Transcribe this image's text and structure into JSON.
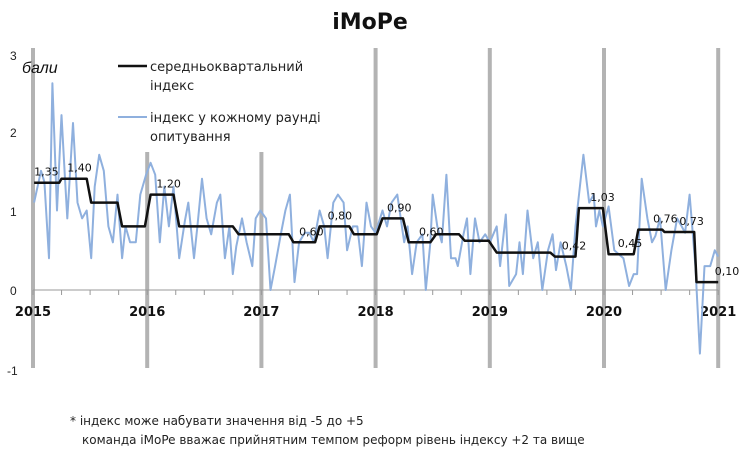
{
  "chart_data": {
    "type": "line",
    "title": "iMoPe",
    "ylabel": "бали",
    "ylim": [
      -1,
      3
    ],
    "yticks": [
      "3",
      "2",
      "1",
      "0",
      "-1"
    ],
    "xlim": [
      2015,
      2021
    ],
    "xticks": [
      "2015",
      "2016",
      "2017",
      "2018",
      "2019",
      "2020",
      "2021"
    ],
    "grid": "vertical bars at years",
    "legend_position": "top-left",
    "series": [
      {
        "name": "середньоквартальний індекс",
        "color": "#111111",
        "style": "step",
        "points": [
          [
            2015.01,
            1.35
          ],
          [
            2015.23,
            1.35
          ],
          [
            2015.25,
            1.4
          ],
          [
            2015.47,
            1.4
          ],
          [
            2015.51,
            1.1
          ],
          [
            2015.74,
            1.1
          ],
          [
            2015.78,
            0.8
          ],
          [
            2015.98,
            0.8
          ],
          [
            2016.03,
            1.2
          ],
          [
            2016.23,
            1.2
          ],
          [
            2016.28,
            0.8
          ],
          [
            2016.75,
            0.8
          ],
          [
            2016.8,
            0.7
          ],
          [
            2017.24,
            0.7
          ],
          [
            2017.28,
            0.6
          ],
          [
            2017.47,
            0.6
          ],
          [
            2017.51,
            0.8
          ],
          [
            2017.77,
            0.8
          ],
          [
            2017.81,
            0.7
          ],
          [
            2018.01,
            0.7
          ],
          [
            2018.06,
            0.9
          ],
          [
            2018.24,
            0.9
          ],
          [
            2018.29,
            0.6
          ],
          [
            2018.48,
            0.6
          ],
          [
            2018.53,
            0.7
          ],
          [
            2018.73,
            0.7
          ],
          [
            2018.78,
            0.62
          ],
          [
            2018.99,
            0.62
          ],
          [
            2019.06,
            0.47
          ],
          [
            2019.53,
            0.47
          ],
          [
            2019.57,
            0.42
          ],
          [
            2019.75,
            0.42
          ],
          [
            2019.78,
            1.03
          ],
          [
            2019.99,
            1.03
          ],
          [
            2020.04,
            0.45
          ],
          [
            2020.26,
            0.45
          ],
          [
            2020.3,
            0.76
          ],
          [
            2020.51,
            0.76
          ],
          [
            2020.53,
            0.73
          ],
          [
            2020.79,
            0.73
          ],
          [
            2020.81,
            0.1
          ],
          [
            2021.0,
            0.1
          ]
        ]
      },
      {
        "name": "індекс у кожному раунді опитування",
        "color": "#8fb0de",
        "style": "line",
        "points": [
          [
            2015.01,
            1.1
          ],
          [
            2015.07,
            1.5
          ],
          [
            2015.1,
            1.36
          ],
          [
            2015.14,
            0.4
          ],
          [
            2015.17,
            2.6
          ],
          [
            2015.21,
            1.0
          ],
          [
            2015.25,
            2.2
          ],
          [
            2015.28,
            1.4
          ],
          [
            2015.3,
            0.9
          ],
          [
            2015.35,
            2.1
          ],
          [
            2015.39,
            1.1
          ],
          [
            2015.43,
            0.9
          ],
          [
            2015.47,
            1.0
          ],
          [
            2015.51,
            0.4
          ],
          [
            2015.54,
            1.3
          ],
          [
            2015.58,
            1.7
          ],
          [
            2015.62,
            1.5
          ],
          [
            2015.66,
            0.8
          ],
          [
            2015.7,
            0.6
          ],
          [
            2015.74,
            1.2
          ],
          [
            2015.78,
            0.4
          ],
          [
            2015.81,
            0.8
          ],
          [
            2015.85,
            0.6
          ],
          [
            2015.9,
            0.6
          ],
          [
            2015.94,
            1.2
          ],
          [
            2015.99,
            1.45
          ],
          [
            2016.03,
            1.6
          ],
          [
            2016.07,
            1.45
          ],
          [
            2016.11,
            0.6
          ],
          [
            2016.15,
            1.3
          ],
          [
            2016.19,
            0.8
          ],
          [
            2016.23,
            1.3
          ],
          [
            2016.28,
            0.4
          ],
          [
            2016.33,
            0.87
          ],
          [
            2016.36,
            1.1
          ],
          [
            2016.41,
            0.4
          ],
          [
            2016.44,
            0.8
          ],
          [
            2016.48,
            1.4
          ],
          [
            2016.52,
            0.9
          ],
          [
            2016.56,
            0.7
          ],
          [
            2016.61,
            1.1
          ],
          [
            2016.64,
            1.2
          ],
          [
            2016.68,
            0.4
          ],
          [
            2016.72,
            0.8
          ],
          [
            2016.75,
            0.2
          ],
          [
            2016.78,
            0.55
          ],
          [
            2016.83,
            0.9
          ],
          [
            2016.87,
            0.6
          ],
          [
            2016.92,
            0.3
          ],
          [
            2016.95,
            0.9
          ],
          [
            2016.99,
            1.0
          ],
          [
            2017.04,
            0.9
          ],
          [
            2017.08,
            0.0
          ],
          [
            2017.12,
            0.3
          ],
          [
            2017.17,
            0.7
          ],
          [
            2017.21,
            1.0
          ],
          [
            2017.25,
            1.2
          ],
          [
            2017.29,
            0.1
          ],
          [
            2017.33,
            0.6
          ],
          [
            2017.38,
            0.72
          ],
          [
            2017.42,
            0.72
          ],
          [
            2017.46,
            0.6
          ],
          [
            2017.51,
            1.0
          ],
          [
            2017.55,
            0.8
          ],
          [
            2017.58,
            0.4
          ],
          [
            2017.63,
            1.1
          ],
          [
            2017.67,
            1.2
          ],
          [
            2017.72,
            1.1
          ],
          [
            2017.75,
            0.5
          ],
          [
            2017.8,
            0.8
          ],
          [
            2017.84,
            0.8
          ],
          [
            2017.88,
            0.3
          ],
          [
            2017.92,
            1.1
          ],
          [
            2017.96,
            0.8
          ],
          [
            2018.0,
            0.72
          ],
          [
            2018.06,
            1.0
          ],
          [
            2018.1,
            0.8
          ],
          [
            2018.14,
            1.1
          ],
          [
            2018.19,
            1.2
          ],
          [
            2018.25,
            0.6
          ],
          [
            2018.28,
            0.8
          ],
          [
            2018.32,
            0.2
          ],
          [
            2018.36,
            0.6
          ],
          [
            2018.41,
            0.7
          ],
          [
            2018.44,
            0.0
          ],
          [
            2018.48,
            0.6
          ],
          [
            2018.5,
            1.2
          ],
          [
            2018.54,
            0.8
          ],
          [
            2018.58,
            0.6
          ],
          [
            2018.62,
            1.45
          ],
          [
            2018.66,
            0.4
          ],
          [
            2018.7,
            0.4
          ],
          [
            2018.72,
            0.3
          ],
          [
            2018.77,
            0.7
          ],
          [
            2018.8,
            0.9
          ],
          [
            2018.83,
            0.2
          ],
          [
            2018.87,
            0.9
          ],
          [
            2018.91,
            0.6
          ],
          [
            2018.96,
            0.7
          ],
          [
            2019.0,
            0.6
          ],
          [
            2019.06,
            0.8
          ],
          [
            2019.09,
            0.3
          ],
          [
            2019.14,
            0.95
          ],
          [
            2019.17,
            0.05
          ],
          [
            2019.23,
            0.2
          ],
          [
            2019.26,
            0.6
          ],
          [
            2019.29,
            0.2
          ],
          [
            2019.33,
            1.0
          ],
          [
            2019.38,
            0.4
          ],
          [
            2019.42,
            0.6
          ],
          [
            2019.46,
            0.0
          ],
          [
            2019.51,
            0.5
          ],
          [
            2019.55,
            0.7
          ],
          [
            2019.58,
            0.25
          ],
          [
            2019.62,
            0.6
          ],
          [
            2019.67,
            0.3
          ],
          [
            2019.71,
            0.0
          ],
          [
            2019.75,
            0.8
          ],
          [
            2019.82,
            1.7
          ],
          [
            2019.87,
            1.1
          ],
          [
            2019.91,
            1.2
          ],
          [
            2019.93,
            0.8
          ],
          [
            2019.96,
            1.0
          ],
          [
            2019.99,
            0.8
          ],
          [
            2020.04,
            1.05
          ],
          [
            2020.09,
            0.5
          ],
          [
            2020.13,
            0.45
          ],
          [
            2020.17,
            0.4
          ],
          [
            2020.22,
            0.05
          ],
          [
            2020.26,
            0.2
          ],
          [
            2020.29,
            0.2
          ],
          [
            2020.33,
            1.4
          ],
          [
            2020.38,
            0.9
          ],
          [
            2020.42,
            0.6
          ],
          [
            2020.45,
            0.68
          ],
          [
            2020.49,
            0.9
          ],
          [
            2020.54,
            0.0
          ],
          [
            2020.59,
            0.5
          ],
          [
            2020.64,
            0.9
          ],
          [
            2020.68,
            0.8
          ],
          [
            2020.71,
            0.72
          ],
          [
            2020.75,
            1.2
          ],
          [
            2020.8,
            0.3
          ],
          [
            2020.84,
            -0.8
          ],
          [
            2020.88,
            0.3
          ],
          [
            2020.93,
            0.3
          ],
          [
            2020.97,
            0.5
          ],
          [
            2021.0,
            0.42
          ]
        ]
      }
    ],
    "data_labels": [
      {
        "x": 2015.01,
        "y": 1.35,
        "text": "1,35"
      },
      {
        "x": 2015.3,
        "y": 1.4,
        "text": "1,40"
      },
      {
        "x": 2016.08,
        "y": 1.2,
        "text": "1,20"
      },
      {
        "x": 2017.33,
        "y": 0.6,
        "text": "0,60"
      },
      {
        "x": 2017.58,
        "y": 0.8,
        "text": "0,80"
      },
      {
        "x": 2018.1,
        "y": 0.9,
        "text": "0,90"
      },
      {
        "x": 2018.38,
        "y": 0.6,
        "text": "0,60"
      },
      {
        "x": 2019.63,
        "y": 0.42,
        "text": "0,42"
      },
      {
        "x": 2019.88,
        "y": 1.03,
        "text": "1,03"
      },
      {
        "x": 2020.12,
        "y": 0.45,
        "text": "0,45"
      },
      {
        "x": 2020.43,
        "y": 0.76,
        "text": "0,76"
      },
      {
        "x": 2020.66,
        "y": 0.73,
        "text": "0,73"
      },
      {
        "x": 2020.97,
        "y": 0.1,
        "text": "0,10"
      }
    ],
    "legend": [
      "середньоквартальний",
      "індекс",
      "індекс у кожному раунді",
      "опитування"
    ],
    "notes": [
      "* індекс може набувати значення від -5 до +5",
      "команда iMoPe вважає прийнятним темпом реформ рівень індексу +2 та вище"
    ],
    "bar_color": "#b3b3b3"
  }
}
